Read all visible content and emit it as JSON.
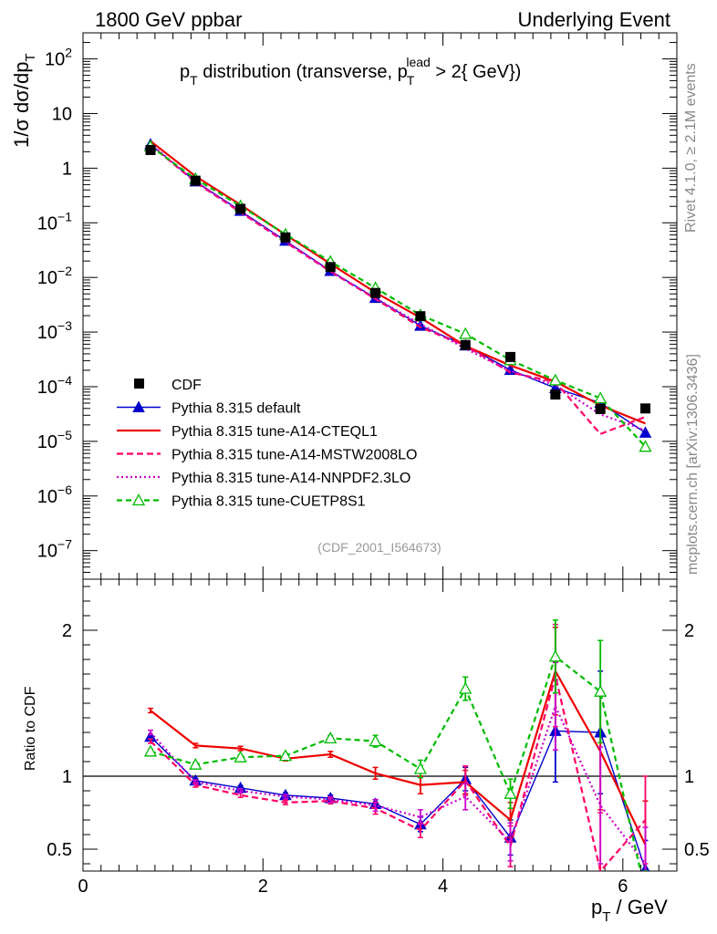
{
  "header": {
    "left": "1800 GeV ppbar",
    "right": "Underlying Event"
  },
  "side_labels": {
    "rivet": "Rivet 4.1.0, ≥ 2.1M events",
    "mcplots": "mcplots.cern.ch [arXiv:1306.3436]"
  },
  "chart_data": {
    "type": "line",
    "title": "pT distribution (transverse, pT lead > 2{ GeV})",
    "title_parts": {
      "p": "p",
      "T": "T",
      "mid": " distribution (transverse, p",
      "lead": "lead",
      "tail": " > 2{ GeV})"
    },
    "analysis_id": "(CDF_2001_I564673)",
    "xlabel": "pT / GeV",
    "xlabel_parts": {
      "p": "p",
      "T": "T",
      "rest": " / GeV"
    },
    "ylabel": "1/σ  dσ/dpT",
    "ylabel_parts": {
      "main": "1/σ  dσ/dp",
      "T": "T"
    },
    "ratio_ylabel": "Ratio to CDF",
    "xlim": [
      0,
      6.6
    ],
    "ylim": [
      3e-08,
      300
    ],
    "ratio_ylim": [
      0.35,
      2.35
    ],
    "x_ticks": [
      "0",
      "2",
      "4",
      "6"
    ],
    "ratio_ticks": [
      "0.5",
      "1",
      "2"
    ],
    "x": [
      0.75,
      1.25,
      1.75,
      2.25,
      2.75,
      3.25,
      3.75,
      4.25,
      4.75,
      5.25,
      5.75,
      6.25
    ],
    "data": {
      "name": "CDF",
      "values": [
        2.15,
        0.59,
        0.18,
        0.054,
        0.0155,
        0.0052,
        0.00195,
        0.00058,
        0.00035,
        7.2e-05,
        3.9e-05,
        4e-05
      ]
    },
    "series": [
      {
        "name": "Pythia 8.315 default",
        "color": "#0000cc",
        "dash": "",
        "marker": "tri",
        "ratio": [
          1.27,
          0.97,
          0.92,
          0.87,
          0.85,
          0.81,
          0.67,
          0.98,
          0.58,
          1.31,
          1.3,
          0.36
        ],
        "ratio_err": [
          0.015,
          0.015,
          0.015,
          0.015,
          0.02,
          0.03,
          0.05,
          0.08,
          0.12,
          0.35,
          0.42,
          0.2
        ]
      },
      {
        "name": "Pythia 8.315 tune-A14-CTEQL1",
        "color": "#ee0000",
        "dash": "",
        "marker": "none",
        "ratio": [
          1.45,
          1.21,
          1.19,
          1.12,
          1.15,
          1.02,
          0.94,
          0.96,
          0.7,
          1.72,
          1.17,
          0.53
        ],
        "ratio_err": [
          0.015,
          0.015,
          0.015,
          0.015,
          0.02,
          0.04,
          0.06,
          0.08,
          0.12,
          0.3,
          0.4,
          0.3
        ]
      },
      {
        "name": "Pythia 8.315 tune-A14-MSTW2008LO",
        "color": "#ff0066",
        "dash": "7,4",
        "marker": "none",
        "ratio": [
          1.24,
          0.94,
          0.87,
          0.82,
          0.83,
          0.78,
          0.63,
          0.97,
          0.52,
          1.69,
          0.35,
          0.7
        ],
        "ratio_err": [
          0.015,
          0.015,
          0.015,
          0.015,
          0.02,
          0.04,
          0.05,
          0.1,
          0.14,
          0.35,
          0.4,
          0.3
        ]
      },
      {
        "name": "Pythia 8.315 tune-A14-NNPDF2.3LO",
        "color": "#cc00cc",
        "dash": "2,3",
        "marker": "none",
        "ratio": [
          1.3,
          0.96,
          0.9,
          0.86,
          0.84,
          0.8,
          0.72,
          0.86,
          0.55,
          1.48,
          0.8,
          0.4
        ],
        "ratio_err": [
          0.015,
          0.015,
          0.015,
          0.015,
          0.02,
          0.04,
          0.05,
          0.09,
          0.13,
          0.3,
          0.4,
          0.25
        ]
      },
      {
        "name": "Pythia 8.315 tune-CUETP8S1",
        "color": "#00bb00",
        "dash": "6,4",
        "marker": "otri",
        "ratio": [
          1.17,
          1.08,
          1.13,
          1.14,
          1.26,
          1.24,
          1.05,
          1.6,
          0.88,
          1.82,
          1.58,
          0.2
        ],
        "ratio_err": [
          0.015,
          0.015,
          0.015,
          0.015,
          0.02,
          0.04,
          0.06,
          0.08,
          0.1,
          0.25,
          0.35,
          0.15
        ]
      }
    ],
    "legend_position": "bottom-left",
    "grid": false
  }
}
